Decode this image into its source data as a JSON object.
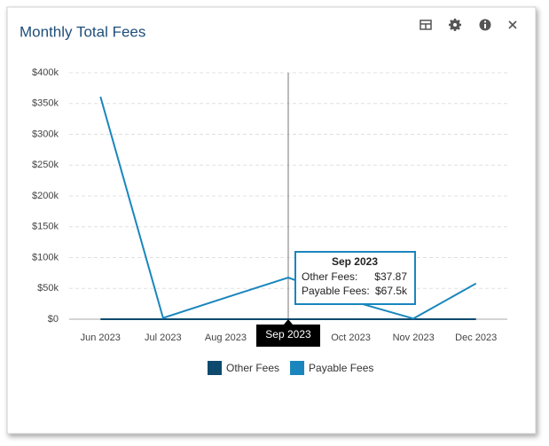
{
  "chart_data": {
    "type": "line",
    "title": "Monthly Total Fees",
    "categories": [
      "Jun 2023",
      "Jul 2023",
      "Aug 2023",
      "Sep 2023",
      "Oct 2023",
      "Nov 2023",
      "Dec 2023"
    ],
    "series": [
      {
        "name": "Other Fees",
        "color": "#0e4a6e",
        "values": [
          40,
          35,
          38,
          37.87,
          36,
          39,
          41
        ]
      },
      {
        "name": "Payable Fees",
        "color": "#1a86bd",
        "values": [
          361000,
          2000,
          35000,
          67500,
          30000,
          1000,
          58000
        ]
      }
    ],
    "ylim": [
      0,
      400000
    ],
    "yticks": [
      {
        "value": 0,
        "label": "$0"
      },
      {
        "value": 50000,
        "label": "$50k"
      },
      {
        "value": 100000,
        "label": "$100k"
      },
      {
        "value": 150000,
        "label": "$150k"
      },
      {
        "value": 200000,
        "label": "$200k"
      },
      {
        "value": 250000,
        "label": "$250k"
      },
      {
        "value": 300000,
        "label": "$300k"
      },
      {
        "value": 350000,
        "label": "$350k"
      },
      {
        "value": 400000,
        "label": "$400k"
      }
    ],
    "grid": true,
    "legend": "bottom",
    "tooltip": {
      "rows": [
        {
          "label": "Other Fees:",
          "value_label": "$37.87"
        },
        {
          "label": "Payable Fees:",
          "value_label": "$67.5k"
        }
      ]
    }
  }
}
